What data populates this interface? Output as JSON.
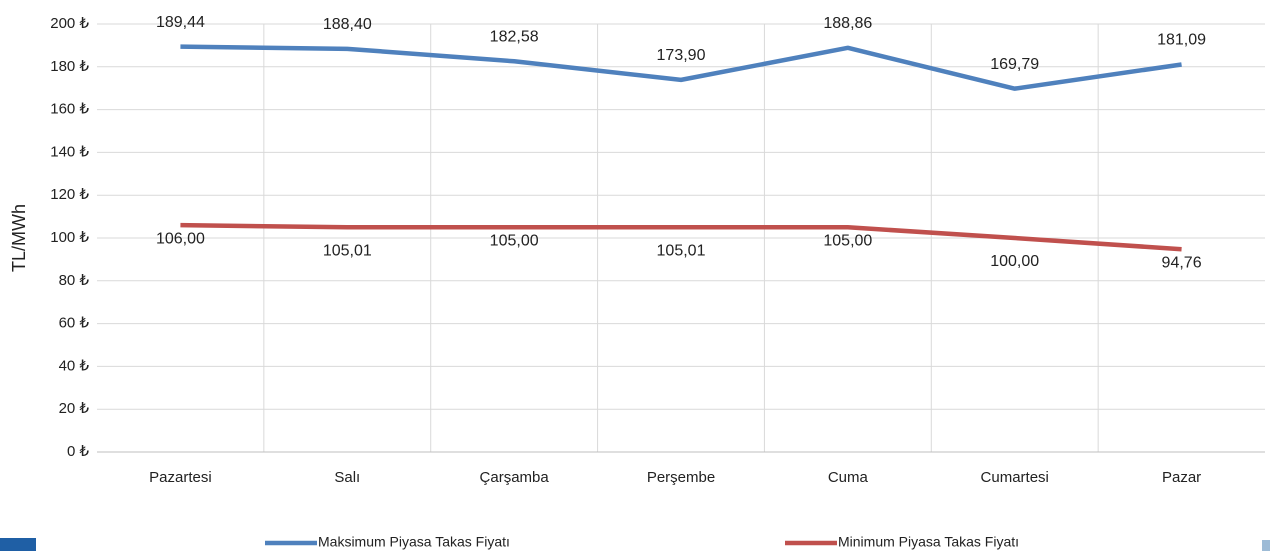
{
  "chart_data": {
    "type": "line",
    "ylabel": "TL/MWh",
    "categories": [
      "Pazartesi",
      "Salı",
      "Çarşamba",
      "Perşembe",
      "Cuma",
      "Cumartesi",
      "Pazar"
    ],
    "series": [
      {
        "name": "Maksimum Piyasa Takas Fiyatı",
        "color": "#4f81bd",
        "values": [
          189.44,
          188.4,
          182.58,
          173.9,
          188.86,
          169.79,
          181.09
        ],
        "value_labels": [
          "189,44",
          "188,40",
          "182,58",
          "173,90",
          "188,86",
          "169,79",
          "181,09"
        ]
      },
      {
        "name": "Minimum Piyasa Takas Fiyatı",
        "color": "#c0504d",
        "values": [
          106.0,
          105.01,
          105.0,
          105.01,
          105.0,
          100.0,
          94.76
        ],
        "value_labels": [
          "106,00",
          "105,01",
          "105,00",
          "105,01",
          "105,00",
          "100,00",
          "94,76"
        ]
      }
    ],
    "ylim": [
      0,
      200
    ],
    "yticks": [
      {
        "value": 0,
        "label": "0 ₺"
      },
      {
        "value": 20,
        "label": "20 ₺"
      },
      {
        "value": 40,
        "label": "40 ₺"
      },
      {
        "value": 60,
        "label": "60 ₺"
      },
      {
        "value": 80,
        "label": "80 ₺"
      },
      {
        "value": 100,
        "label": "100 ₺"
      },
      {
        "value": 120,
        "label": "120 ₺"
      },
      {
        "value": 140,
        "label": "140 ₺"
      },
      {
        "value": 160,
        "label": "160 ₺"
      },
      {
        "value": 180,
        "label": "180 ₺"
      },
      {
        "value": 200,
        "label": "200 ₺"
      }
    ],
    "grid": true,
    "legend": "bottom"
  }
}
